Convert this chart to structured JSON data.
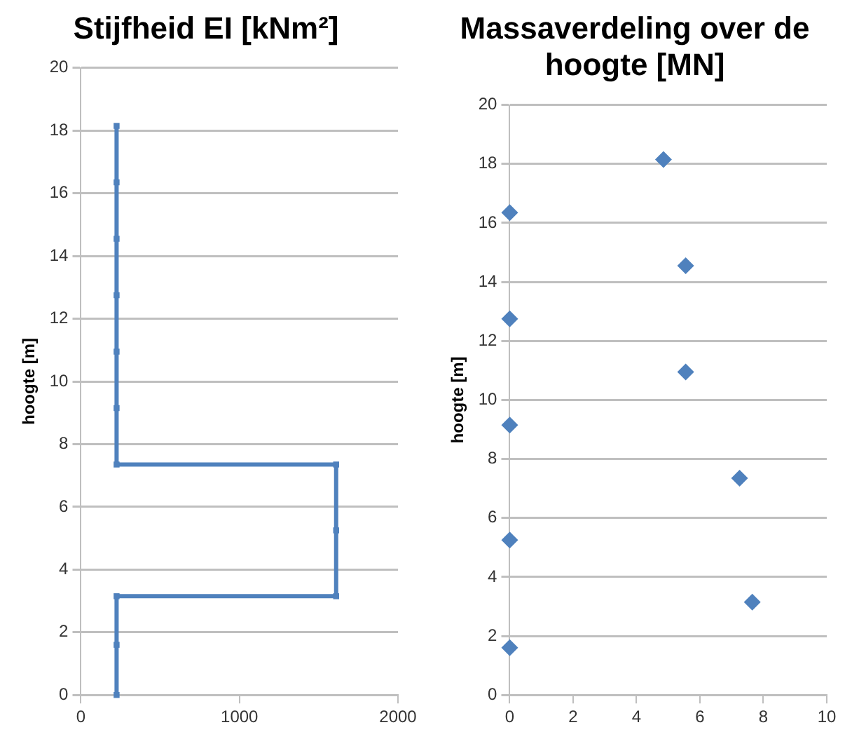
{
  "chart_data": [
    {
      "type": "line",
      "title": "Stijfheid EI [kNm²]",
      "ylabel": "hoogte [m]",
      "marker": "square",
      "line_style": "solid",
      "grid": "y",
      "legend": false,
      "series": [
        {
          "color": "#4f81bd",
          "x": [
            225,
            225,
            225,
            1610,
            1610,
            1610,
            225,
            225,
            225,
            225,
            225,
            225,
            225
          ],
          "values": [
            0,
            1.6,
            3.15,
            3.15,
            5.25,
            7.35,
            7.35,
            9.15,
            10.95,
            12.75,
            14.55,
            16.35,
            18.15
          ]
        }
      ],
      "xlim": [
        0,
        2000
      ],
      "xticks": [
        0,
        1000,
        2000
      ],
      "ylim": [
        0,
        20
      ],
      "yticks": [
        0,
        2,
        4,
        6,
        8,
        10,
        12,
        14,
        16,
        18,
        20
      ]
    },
    {
      "type": "scatter",
      "title": "Massaverdeling over de hoogte [MN]",
      "ylabel": "hoogte [m]",
      "marker": "diamond",
      "grid": "y",
      "legend": false,
      "series": [
        {
          "color": "#4f81bd",
          "x": [
            0,
            7.65,
            0,
            7.25,
            0,
            5.55,
            0,
            5.55,
            0,
            4.85
          ],
          "values": [
            1.6,
            3.15,
            5.25,
            7.35,
            9.15,
            10.95,
            12.75,
            14.55,
            16.35,
            18.15
          ]
        }
      ],
      "xlim": [
        0,
        10
      ],
      "xticks": [
        0,
        2,
        4,
        6,
        8,
        10
      ],
      "ylim": [
        0,
        20
      ],
      "yticks": [
        0,
        2,
        4,
        6,
        8,
        10,
        12,
        14,
        16,
        18,
        20
      ]
    }
  ]
}
